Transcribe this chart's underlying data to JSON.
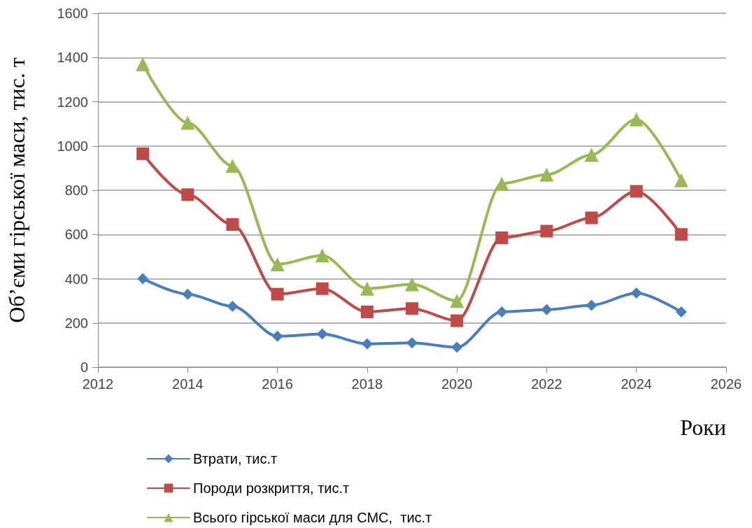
{
  "chart_data": {
    "type": "line",
    "xlabel": "Роки",
    "ylabel": "Об’єми гірської маси, тис. т",
    "xlim": [
      2012,
      2026
    ],
    "xticks": [
      2012,
      2014,
      2016,
      2018,
      2020,
      2022,
      2024,
      2026
    ],
    "ylim": [
      0,
      1600
    ],
    "yticks": [
      0,
      200,
      400,
      600,
      800,
      1000,
      1200,
      1400,
      1600
    ],
    "x": [
      2013,
      2014,
      2015,
      2016,
      2017,
      2018,
      2019,
      2020,
      2021,
      2022,
      2023,
      2024,
      2025
    ],
    "grid": "y",
    "legend": "bottom",
    "line_style": "solid",
    "series": [
      {
        "name": "Втрати, тис.т",
        "color": "#4a7ebb",
        "marker": "diamond",
        "values": [
          400,
          330,
          275,
          140,
          150,
          105,
          110,
          90,
          250,
          260,
          280,
          335,
          250
        ]
      },
      {
        "name": "Породи розкриття, тис.т",
        "color": "#be4b48",
        "marker": "square",
        "values": [
          965,
          780,
          645,
          330,
          355,
          250,
          265,
          210,
          585,
          615,
          675,
          795,
          600
        ]
      },
      {
        "name": "Всього гірської маси для СМС,  тис.т",
        "color": "#98b954",
        "marker": "triangle",
        "values": [
          1370,
          1105,
          910,
          465,
          505,
          355,
          375,
          300,
          830,
          870,
          960,
          1120,
          845
        ]
      }
    ]
  }
}
